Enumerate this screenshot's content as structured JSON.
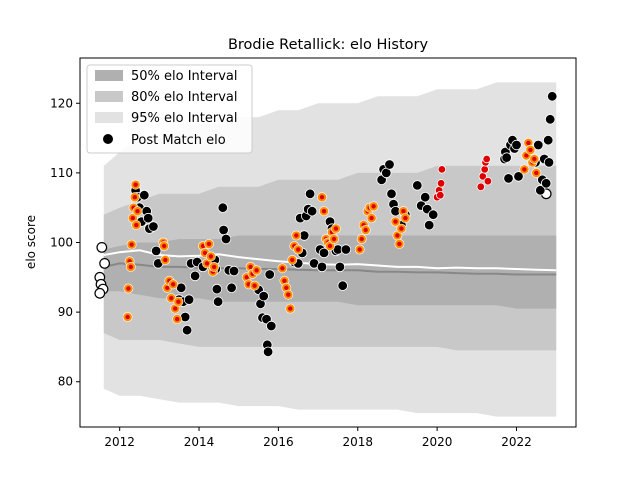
{
  "chart_data": {
    "type": "scatter",
    "title": "Brodie Retallick: elo History",
    "xlabel": "",
    "ylabel": "elo score",
    "xlim": [
      2011.0,
      2023.5
    ],
    "ylim": [
      73.5,
      126.5
    ],
    "xticks": [
      2012,
      2014,
      2016,
      2018,
      2020,
      2022
    ],
    "yticks": [
      80,
      90,
      100,
      110,
      120
    ],
    "legend_position": "top-left",
    "legend": [
      {
        "key": "band50",
        "label": "50% elo Interval",
        "color": "#b0b0b0"
      },
      {
        "key": "band80",
        "label": "80% elo Interval",
        "color": "#c8c8c8"
      },
      {
        "key": "band95",
        "label": "95% elo Interval",
        "color": "#e2e2e2"
      },
      {
        "key": "points",
        "label": "Post Match elo",
        "color": "#000000"
      }
    ],
    "bands": {
      "x": [
        2011.6,
        2012.0,
        2012.5,
        2013.0,
        2013.5,
        2014.0,
        2014.5,
        2015.0,
        2015.5,
        2016.0,
        2016.5,
        2017.0,
        2017.5,
        2018.0,
        2018.5,
        2019.0,
        2019.5,
        2020.0,
        2020.5,
        2021.0,
        2021.5,
        2022.0,
        2022.5,
        2023.0
      ],
      "p95_hi": [
        111,
        113,
        115,
        115,
        116,
        117,
        117,
        118,
        118,
        119,
        119,
        120,
        120,
        120,
        121,
        121,
        121,
        122,
        122,
        122,
        123,
        123,
        123,
        123
      ],
      "p80_hi": [
        104,
        105,
        106,
        107,
        107,
        107,
        108,
        108,
        108,
        109,
        109,
        109,
        109,
        110,
        110,
        110,
        110,
        111,
        111,
        111,
        111,
        111,
        111,
        111
      ],
      "p50_hi": [
        99,
        99.5,
        100,
        100,
        100.5,
        100.5,
        100.5,
        101,
        101,
        101,
        101,
        101,
        101,
        101,
        101,
        101,
        101,
        101,
        101,
        101,
        101,
        101,
        101,
        101
      ],
      "median": [
        96.5,
        97,
        96.8,
        96.5,
        96.5,
        96.4,
        96.3,
        96.3,
        96.2,
        96.2,
        96.1,
        96,
        96,
        96,
        95.8,
        95.8,
        95.7,
        95.7,
        95.6,
        95.5,
        95.5,
        95.4,
        95.4,
        95.4
      ],
      "mean": [
        98.2,
        98.6,
        98.9,
        98.2,
        98,
        98.1,
        98.3,
        97.9,
        97.6,
        97.3,
        97.1,
        96.9,
        96.8,
        96.9,
        96.7,
        96.5,
        96.5,
        96.3,
        96.4,
        96.3,
        96.3,
        96.2,
        96.1,
        96.0
      ],
      "p50_lo": [
        93,
        93,
        92.5,
        92,
        92,
        92,
        91.5,
        91.5,
        91.5,
        91.5,
        91.5,
        91.5,
        91.5,
        91,
        91,
        91,
        91,
        91,
        91,
        91,
        91,
        90.5,
        90.5,
        90.5
      ],
      "p80_lo": [
        87,
        86,
        86,
        86,
        85.5,
        85,
        85,
        85,
        85,
        85,
        85,
        85,
        85,
        85,
        85,
        85,
        85,
        85,
        84.5,
        84.5,
        84.5,
        84.5,
        84.5,
        84.5
      ],
      "p95_lo": [
        79,
        78,
        78,
        77.5,
        77,
        77,
        77,
        76.5,
        76.5,
        76.5,
        76,
        76,
        76,
        76,
        76,
        76,
        75.5,
        75.5,
        75.5,
        75.5,
        75,
        75,
        75,
        75
      ]
    },
    "series": [
      {
        "name": "unmarked",
        "style": "open",
        "points": [
          [
            2011.55,
            99.3
          ],
          [
            2011.5,
            95.0
          ],
          [
            2011.53,
            94.0
          ],
          [
            2011.58,
            93.3
          ],
          [
            2011.5,
            92.7
          ],
          [
            2011.62,
            97.0
          ],
          [
            2022.75,
            107.0
          ]
        ]
      },
      {
        "name": "black",
        "style": "black",
        "points": [
          [
            2012.4,
            107.5
          ],
          [
            2012.45,
            106.5
          ],
          [
            2012.5,
            105.0
          ],
          [
            2012.55,
            103.0
          ],
          [
            2012.62,
            106.8
          ],
          [
            2012.68,
            104.5
          ],
          [
            2012.72,
            103.5
          ],
          [
            2012.75,
            102.0
          ],
          [
            2012.85,
            102.3
          ],
          [
            2012.92,
            98.8
          ],
          [
            2012.97,
            97.0
          ],
          [
            2013.5,
            91.8
          ],
          [
            2013.55,
            93.5
          ],
          [
            2013.6,
            91.5
          ],
          [
            2013.65,
            89.3
          ],
          [
            2013.7,
            87.4
          ],
          [
            2013.75,
            91.8
          ],
          [
            2013.8,
            97.0
          ],
          [
            2013.9,
            95.2
          ],
          [
            2013.95,
            97.2
          ],
          [
            2014.1,
            96.5
          ],
          [
            2014.4,
            97.5
          ],
          [
            2014.42,
            96.2
          ],
          [
            2014.45,
            93.3
          ],
          [
            2014.48,
            91.5
          ],
          [
            2014.6,
            105.0
          ],
          [
            2014.62,
            101.8
          ],
          [
            2014.68,
            100.5
          ],
          [
            2014.75,
            96.0
          ],
          [
            2014.82,
            93.5
          ],
          [
            2014.88,
            95.9
          ],
          [
            2015.5,
            93.2
          ],
          [
            2015.55,
            91.2
          ],
          [
            2015.6,
            89.2
          ],
          [
            2015.63,
            92.3
          ],
          [
            2015.7,
            89.0
          ],
          [
            2015.72,
            85.3
          ],
          [
            2015.74,
            84.3
          ],
          [
            2015.78,
            95.4
          ],
          [
            2015.82,
            88.0
          ],
          [
            2016.4,
            97.2
          ],
          [
            2016.5,
            97.0
          ],
          [
            2016.55,
            103.5
          ],
          [
            2016.6,
            98.5
          ],
          [
            2016.65,
            101.0
          ],
          [
            2016.7,
            103.8
          ],
          [
            2016.75,
            104.8
          ],
          [
            2016.8,
            107.0
          ],
          [
            2016.85,
            104.5
          ],
          [
            2016.9,
            97.0
          ],
          [
            2017.05,
            99.0
          ],
          [
            2017.1,
            96.5
          ],
          [
            2017.15,
            98.5
          ],
          [
            2017.3,
            103.0
          ],
          [
            2017.35,
            102.0
          ],
          [
            2017.45,
            98.8
          ],
          [
            2017.5,
            99.0
          ],
          [
            2017.55,
            96.5
          ],
          [
            2017.62,
            93.8
          ],
          [
            2017.7,
            99.0
          ],
          [
            2018.6,
            109.0
          ],
          [
            2018.65,
            110.5
          ],
          [
            2018.72,
            110.0
          ],
          [
            2018.8,
            111.2
          ],
          [
            2018.85,
            107.0
          ],
          [
            2018.9,
            105.5
          ],
          [
            2018.95,
            104.5
          ],
          [
            2019.1,
            102.5
          ],
          [
            2019.2,
            104.0
          ],
          [
            2019.5,
            108.2
          ],
          [
            2019.6,
            105.3
          ],
          [
            2019.7,
            106.5
          ],
          [
            2019.75,
            104.8
          ],
          [
            2019.8,
            102.5
          ],
          [
            2019.9,
            104.0
          ],
          [
            2021.7,
            112.0
          ],
          [
            2021.72,
            113.0
          ],
          [
            2021.75,
            112.2
          ],
          [
            2021.8,
            109.2
          ],
          [
            2021.85,
            114.0
          ],
          [
            2021.9,
            114.7
          ],
          [
            2021.95,
            113.5
          ],
          [
            2022.05,
            109.5
          ],
          [
            2022.0,
            114.0
          ],
          [
            2022.48,
            111.5
          ],
          [
            2022.55,
            114.0
          ],
          [
            2022.6,
            107.5
          ],
          [
            2022.65,
            109.0
          ],
          [
            2022.7,
            112.0
          ],
          [
            2022.75,
            108.5
          ],
          [
            2022.8,
            114.7
          ],
          [
            2022.82,
            111.5
          ],
          [
            2022.85,
            117.7
          ],
          [
            2022.9,
            121.0
          ]
        ]
      },
      {
        "name": "orange",
        "style": "orange",
        "points": [
          [
            2012.2,
            89.3
          ],
          [
            2012.22,
            93.4
          ],
          [
            2012.25,
            97.3
          ],
          [
            2012.28,
            96.5
          ],
          [
            2012.3,
            99.7
          ],
          [
            2012.33,
            103.5
          ],
          [
            2012.35,
            105.0
          ],
          [
            2012.38,
            106.5
          ],
          [
            2012.4,
            108.3
          ],
          [
            2012.42,
            102.5
          ],
          [
            2012.45,
            104.5
          ],
          [
            2013.1,
            100.0
          ],
          [
            2013.12,
            99.5
          ],
          [
            2013.15,
            97.5
          ],
          [
            2013.2,
            93.5
          ],
          [
            2013.25,
            94.5
          ],
          [
            2013.3,
            92.0
          ],
          [
            2013.35,
            94.0
          ],
          [
            2013.4,
            90.5
          ],
          [
            2013.45,
            89.0
          ],
          [
            2013.48,
            91.5
          ],
          [
            2014.1,
            99.5
          ],
          [
            2014.15,
            98.5
          ],
          [
            2014.2,
            97.0
          ],
          [
            2014.25,
            99.8
          ],
          [
            2014.3,
            98.0
          ],
          [
            2014.35,
            95.8
          ],
          [
            2014.38,
            96.5
          ],
          [
            2015.2,
            95.0
          ],
          [
            2015.25,
            94.0
          ],
          [
            2015.3,
            96.5
          ],
          [
            2015.35,
            95.5
          ],
          [
            2015.4,
            93.8
          ],
          [
            2015.45,
            96.0
          ],
          [
            2016.1,
            96.3
          ],
          [
            2016.15,
            94.5
          ],
          [
            2016.2,
            93.5
          ],
          [
            2016.25,
            92.5
          ],
          [
            2016.3,
            90.5
          ],
          [
            2016.35,
            97.5
          ],
          [
            2016.4,
            99.5
          ],
          [
            2016.45,
            101.0
          ],
          [
            2016.5,
            99.0
          ],
          [
            2017.1,
            106.5
          ],
          [
            2017.15,
            104.5
          ],
          [
            2017.2,
            100.5
          ],
          [
            2017.25,
            100.0
          ],
          [
            2017.3,
            99.5
          ],
          [
            2017.35,
            101.5
          ],
          [
            2017.4,
            100.5
          ],
          [
            2017.45,
            102.0
          ],
          [
            2018.05,
            99.0
          ],
          [
            2018.1,
            100.5
          ],
          [
            2018.15,
            102.5
          ],
          [
            2018.2,
            101.8
          ],
          [
            2018.25,
            104.5
          ],
          [
            2018.3,
            105.0
          ],
          [
            2018.35,
            103.5
          ],
          [
            2018.4,
            105.2
          ],
          [
            2018.95,
            103.0
          ],
          [
            2019.0,
            101.0
          ],
          [
            2019.05,
            99.8
          ],
          [
            2019.1,
            102.0
          ],
          [
            2019.15,
            104.5
          ],
          [
            2019.2,
            103.5
          ],
          [
            2022.2,
            110.5
          ],
          [
            2022.25,
            112.5
          ],
          [
            2022.3,
            114.3
          ],
          [
            2022.35,
            113.3
          ],
          [
            2022.4,
            111.5
          ],
          [
            2022.45,
            112.0
          ],
          [
            2022.5,
            110.0
          ]
        ]
      },
      {
        "name": "red",
        "style": "red",
        "points": [
          [
            2020.0,
            106.5
          ],
          [
            2020.05,
            107.5
          ],
          [
            2020.1,
            108.5
          ],
          [
            2020.12,
            110.5
          ],
          [
            2020.08,
            106.8
          ],
          [
            2021.1,
            108.0
          ],
          [
            2021.15,
            109.5
          ],
          [
            2021.2,
            110.5
          ],
          [
            2021.22,
            111.5
          ],
          [
            2021.25,
            112.0
          ],
          [
            2021.28,
            108.8
          ]
        ]
      }
    ]
  }
}
